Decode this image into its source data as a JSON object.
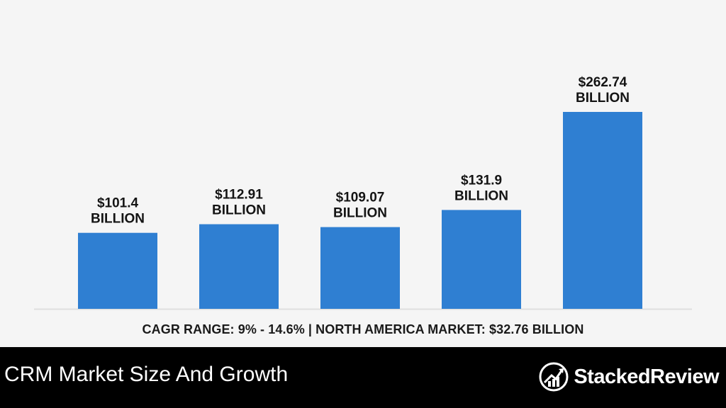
{
  "chart_data": {
    "type": "bar",
    "categories": [
      "",
      "",
      "",
      "",
      ""
    ],
    "values": [
      101.4,
      112.91,
      109.07,
      131.9,
      262.74
    ],
    "data_labels": [
      [
        "$101.4",
        "BILLION"
      ],
      [
        "$112.91",
        "BILLION"
      ],
      [
        "$109.07",
        "BILLION"
      ],
      [
        "$131.9",
        "BILLION"
      ],
      [
        "$262.74",
        "BILLION"
      ]
    ],
    "title": "",
    "xlabel": "",
    "ylabel": "",
    "ylim": [
      0,
      262.74
    ],
    "grid": false,
    "legend": "none",
    "bar_color": "#2f7fd2",
    "annotation": "CAGR RANGE: 9% - 14.6% | NORTH AMERICA MARKET: $32.76 BILLION"
  },
  "footer": {
    "title": "CRM Market Size And Growth",
    "brand": "StackedReview"
  },
  "colors": {
    "background": "#f5f5f5",
    "footer_background": "#000000",
    "footer_text": "#ffffff",
    "bar": "#2f7fd2"
  },
  "icons": {
    "brand_logo": "stacked-review-logo-icon"
  }
}
